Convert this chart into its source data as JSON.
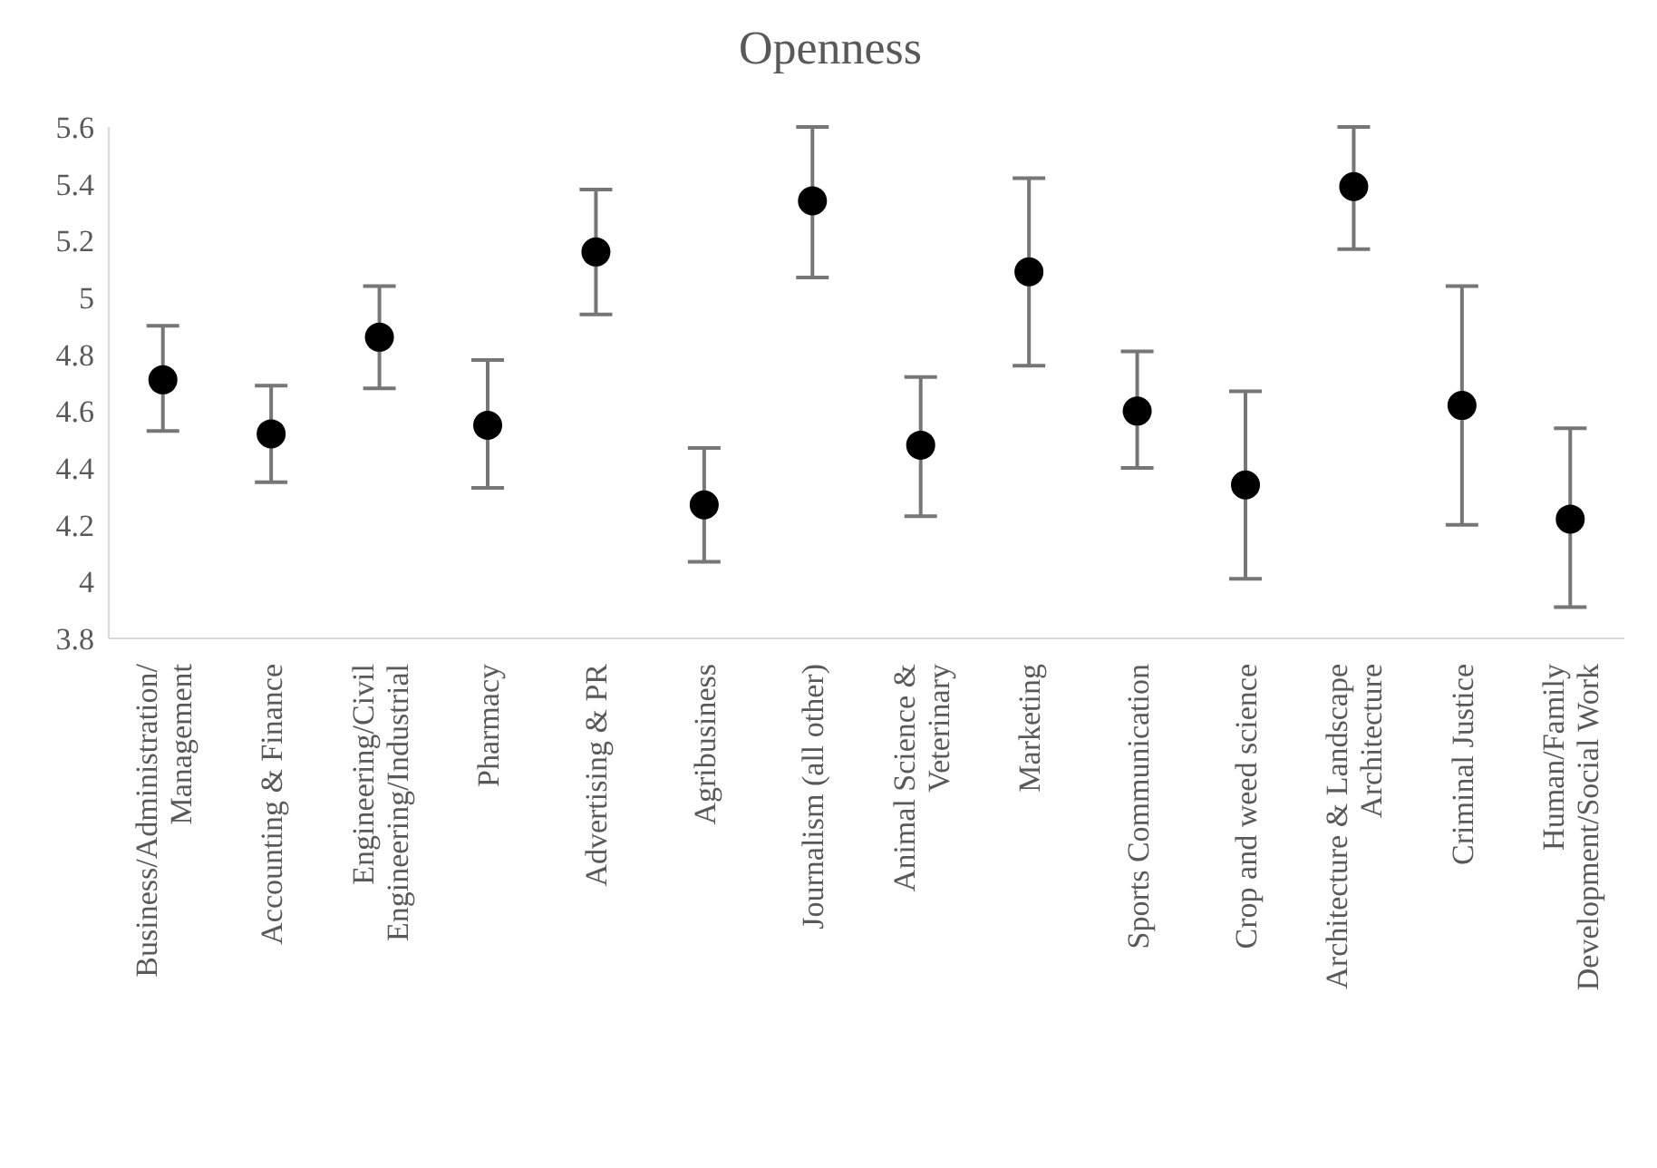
{
  "chart_data": {
    "type": "scatter",
    "title": "Openness",
    "categories": [
      "Business/Administration/Management",
      "Accounting & Finance",
      "Engineering/Civil Engineering/Industrial",
      "Pharmacy",
      "Advertising & PR",
      "Agribusiness",
      "Journalism (all other)",
      "Animal Science & Veterinary",
      "Marketing",
      "Sports Communication",
      "Crop and weed science",
      "Architecture & Landscape Architecture",
      "Criminal Justice",
      "Human/Family Development/Social Work"
    ],
    "values": [
      4.71,
      4.52,
      4.86,
      4.55,
      5.16,
      4.27,
      5.34,
      4.48,
      5.09,
      4.6,
      4.34,
      5.39,
      4.62,
      4.22
    ],
    "errors": [
      [
        4.53,
        4.9
      ],
      [
        4.35,
        4.69
      ],
      [
        4.68,
        5.04
      ],
      [
        4.33,
        4.78
      ],
      [
        4.94,
        5.38
      ],
      [
        4.07,
        4.47
      ],
      [
        5.07,
        5.6
      ],
      [
        4.23,
        4.72
      ],
      [
        4.76,
        5.42
      ],
      [
        4.4,
        4.81
      ],
      [
        4.01,
        4.67
      ],
      [
        5.17,
        5.6
      ],
      [
        4.2,
        5.04
      ],
      [
        3.91,
        4.54
      ]
    ],
    "color": "#000000",
    "ylim": [
      3.8,
      5.6
    ],
    "yticks": [
      3.8,
      4,
      4.2,
      4.4,
      4.6,
      4.8,
      5,
      5.2,
      5.4,
      5.6
    ],
    "marker": "circle",
    "grid": false,
    "legend": false
  }
}
